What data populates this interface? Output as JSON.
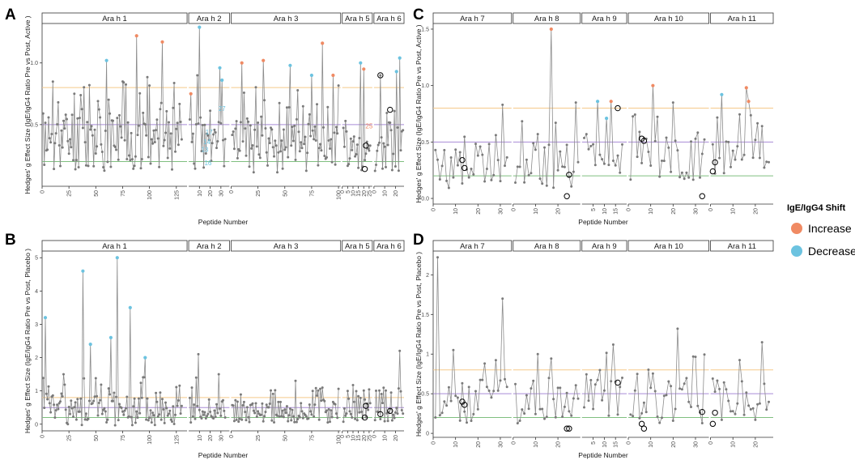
{
  "colors": {
    "increase": "#f08a63",
    "decrease": "#6cc3e0",
    "neutral": "#7a7a7a",
    "line": "#8c8c8c",
    "hl_orange": "#f5c98a",
    "hl_purple": "#a98bd6",
    "hl_green": "#7fbf7f"
  },
  "legend": {
    "title": "IgE/IgG4 Shift",
    "items": [
      {
        "label": "Increase",
        "color": "#f08a63"
      },
      {
        "label": "Decrease",
        "color": "#6cc3e0"
      }
    ]
  },
  "x_axis_title": "Peptide Number",
  "hlines": [
    {
      "y": 0.8,
      "color": "#f5c98a"
    },
    {
      "y": 0.5,
      "color": "#a98bd6"
    },
    {
      "y": 0.2,
      "color": "#7fbf7f"
    }
  ],
  "chart_data": [
    {
      "id": "A",
      "type": "line",
      "letter": "A",
      "ylabel": "Hedges' g Effect Size (IgE/IgG4 Ratio Pre vs Post,  Active )",
      "ylim": [
        0,
        1.32
      ],
      "yticks": [
        0.5,
        1.0
      ],
      "facets": [
        {
          "name": "Ara h 1",
          "xlim": [
            0,
            135
          ],
          "xticks": [
            0,
            25,
            50,
            75,
            100,
            125
          ],
          "n": 130,
          "seed": 11,
          "base": 0.38,
          "spread": 0.26,
          "spikes": [
            [
              60,
              1.02,
              "decrease"
            ],
            [
              88,
              1.22,
              "increase"
            ],
            [
              112,
              1.17,
              "increase"
            ],
            [
              30,
              0.75,
              "none"
            ],
            [
              44,
              0.82,
              "none"
            ],
            [
              75,
              0.85,
              "none"
            ]
          ]
        },
        {
          "name": "Ara h 2",
          "xlim": [
            0,
            38
          ],
          "xticks": [
            10,
            20,
            30
          ],
          "n": 34,
          "seed": 23,
          "base": 0.35,
          "spread": 0.22,
          "spikes": [
            [
              2,
              0.75,
              "increase"
            ],
            [
              8,
              0.9,
              "none"
            ],
            [
              10,
              1.29,
              "decrease"
            ],
            [
              29,
              0.96,
              "decrease"
            ],
            [
              31,
              0.86,
              "decrease"
            ]
          ],
          "annotations": [
            {
              "x": 15,
              "y": 0.3,
              "label": "13"
            },
            {
              "x": 17,
              "y": 0.36,
              "label": "14"
            },
            {
              "x": 19,
              "y": 0.44,
              "label": "17"
            },
            {
              "x": 18,
              "y": 0.19,
              "label": "16"
            },
            {
              "x": 31,
              "y": 0.63,
              "label": "27"
            }
          ]
        },
        {
          "name": "Ara h 3",
          "xlim": [
            0,
            102
          ],
          "xticks": [
            0,
            25,
            50,
            75,
            100
          ],
          "n": 100,
          "seed": 37,
          "base": 0.35,
          "spread": 0.24,
          "spikes": [
            [
              10,
              1.0,
              "increase"
            ],
            [
              30,
              1.02,
              "increase"
            ],
            [
              55,
              0.98,
              "decrease"
            ],
            [
              85,
              1.16,
              "increase"
            ],
            [
              95,
              0.9,
              "increase"
            ],
            [
              75,
              0.9,
              "decrease"
            ]
          ]
        },
        {
          "name": "Ara h 5",
          "xlim": [
            0,
            28
          ],
          "xticks": [
            0,
            5,
            10,
            15,
            20,
            25
          ],
          "n": 26,
          "seed": 41,
          "base": 0.3,
          "spread": 0.18,
          "spikes": [
            [
              17,
              1.0,
              "decrease"
            ],
            [
              20,
              0.95,
              "increase"
            ]
          ],
          "rings": [
            [
              22,
              0.33
            ],
            [
              21,
              0.14
            ]
          ],
          "annotations": [
            {
              "x": 25,
              "y": 0.49,
              "label": "25"
            }
          ]
        },
        {
          "name": "Ara h 6",
          "xlim": [
            0,
            28
          ],
          "xticks": [
            0,
            10,
            20
          ],
          "n": 27,
          "seed": 53,
          "base": 0.32,
          "spread": 0.2,
          "spikes": [
            [
              6,
              0.9,
              "none"
            ],
            [
              21,
              0.93,
              "decrease"
            ],
            [
              24,
              1.04,
              "decrease"
            ]
          ],
          "rings": [
            [
              6,
              0.9
            ],
            [
              15,
              0.62
            ]
          ]
        }
      ]
    },
    {
      "id": "B",
      "type": "line",
      "letter": "B",
      "ylabel": "Hedges' g Effect Size (IgE/IgG4 Ratio Pre vs Post,  Placebo )",
      "ylim": [
        -0.2,
        5.2
      ],
      "yticks": [
        0,
        1,
        2,
        3,
        4,
        5
      ],
      "facets": [
        {
          "name": "Ara h 1",
          "xlim": [
            0,
            135
          ],
          "xticks": [
            0,
            25,
            50,
            75,
            100,
            125
          ],
          "n": 130,
          "seed": 61,
          "base": 0.45,
          "spread": 0.5,
          "spikes": [
            [
              3,
              3.2,
              "decrease"
            ],
            [
              38,
              4.6,
              "decrease"
            ],
            [
              45,
              2.4,
              "decrease"
            ],
            [
              70,
              5.0,
              "decrease"
            ],
            [
              64,
              2.6,
              "decrease"
            ],
            [
              82,
              3.5,
              "decrease"
            ],
            [
              20,
              1.5,
              "none"
            ],
            [
              96,
              2.0,
              "decrease"
            ]
          ]
        },
        {
          "name": "Ara h 2",
          "xlim": [
            0,
            38
          ],
          "xticks": [
            10,
            20,
            30
          ],
          "n": 34,
          "seed": 71,
          "base": 0.4,
          "spread": 0.35,
          "spikes": [
            [
              9,
              2.1,
              "none"
            ],
            [
              7,
              1.4,
              "none"
            ],
            [
              28,
              1.5,
              "none"
            ]
          ]
        },
        {
          "name": "Ara h 3",
          "xlim": [
            0,
            102
          ],
          "xticks": [
            0,
            25,
            50,
            75,
            100
          ],
          "n": 100,
          "seed": 79,
          "base": 0.4,
          "spread": 0.35,
          "spikes": [
            [
              60,
              1.3,
              "none"
            ],
            [
              85,
              1.1,
              "none"
            ]
          ]
        },
        {
          "name": "Ara h 5",
          "xlim": [
            0,
            28
          ],
          "xticks": [
            0,
            5,
            10,
            15,
            20,
            25
          ],
          "n": 26,
          "seed": 83,
          "base": 0.4,
          "spread": 0.4,
          "spikes": [
            [
              5,
              1.0,
              "none"
            ]
          ],
          "rings": [
            [
              22,
              0.55
            ],
            [
              21,
              0.2
            ]
          ]
        },
        {
          "name": "Ara h 6",
          "xlim": [
            0,
            28
          ],
          "xticks": [
            0,
            10,
            20
          ],
          "n": 27,
          "seed": 89,
          "base": 0.4,
          "spread": 0.35,
          "spikes": [
            [
              24,
              2.2,
              "none"
            ]
          ],
          "rings": [
            [
              6,
              0.3
            ],
            [
              15,
              0.4
            ]
          ]
        }
      ]
    },
    {
      "id": "C",
      "type": "line",
      "letter": "C",
      "ylabel": "Hedges' g Effect Size (IgE/IgG4 Ratio Pre vs Post,  Active )",
      "ylim": [
        -0.05,
        1.55
      ],
      "yticks": [
        0.0,
        0.5,
        1.0,
        1.5
      ],
      "facets": [
        {
          "name": "Ara h 7",
          "xlim": [
            0,
            35
          ],
          "xticks": [
            0,
            10,
            20,
            30
          ],
          "n": 33,
          "seed": 97,
          "base": 0.3,
          "spread": 0.22,
          "spikes": [
            [
              31,
              0.83,
              "none"
            ]
          ],
          "rings": [
            [
              13,
              0.34
            ],
            [
              14,
              0.27
            ]
          ]
        },
        {
          "name": "Ara h 8",
          "xlim": [
            0,
            30
          ],
          "xticks": [
            0,
            10,
            20
          ],
          "n": 29,
          "seed": 101,
          "base": 0.3,
          "spread": 0.22,
          "spikes": [
            [
              17,
              1.5,
              "increase"
            ],
            [
              28,
              0.85,
              "none"
            ]
          ],
          "rings": [
            [
              24,
              0.02
            ],
            [
              25,
              0.21
            ]
          ]
        },
        {
          "name": "Ara h 9",
          "xlim": [
            0,
            20
          ],
          "xticks": [
            5,
            10,
            15
          ],
          "n": 18,
          "seed": 103,
          "base": 0.4,
          "spread": 0.22,
          "spikes": [
            [
              7,
              0.86,
              "decrease"
            ],
            [
              11,
              0.71,
              "decrease"
            ],
            [
              13,
              0.86,
              "increase"
            ]
          ],
          "rings": [
            [
              16,
              0.8
            ]
          ]
        },
        {
          "name": "Ara h 10",
          "xlim": [
            0,
            36
          ],
          "xticks": [
            0,
            10,
            20,
            30
          ],
          "n": 34,
          "seed": 107,
          "base": 0.32,
          "spread": 0.22,
          "spikes": [
            [
              11,
              1.0,
              "increase"
            ],
            [
              20,
              0.85,
              "none"
            ]
          ],
          "rings": [
            [
              6,
              0.53
            ],
            [
              7,
              0.51
            ],
            [
              33,
              0.02
            ]
          ]
        },
        {
          "name": "Ara h 11",
          "xlim": [
            0,
            28
          ],
          "xticks": [
            0,
            10,
            20
          ],
          "n": 26,
          "seed": 109,
          "base": 0.35,
          "spread": 0.2,
          "spikes": [
            [
              5,
              0.92,
              "decrease"
            ],
            [
              16,
              0.98,
              "increase"
            ],
            [
              17,
              0.86,
              "increase"
            ]
          ],
          "rings": [
            [
              2,
              0.32
            ],
            [
              1,
              0.24
            ]
          ]
        }
      ]
    },
    {
      "id": "D",
      "type": "line",
      "letter": "D",
      "ylabel": "Hedges' g Effect Size (IgE/IgG4 Ratio Pre vs Post,  Placebo )",
      "ylim": [
        -0.05,
        2.3
      ],
      "yticks": [
        0.0,
        0.5,
        1.0,
        1.5,
        2.0
      ],
      "facets": [
        {
          "name": "Ara h 7",
          "xlim": [
            0,
            35
          ],
          "xticks": [
            0,
            10,
            20,
            30
          ],
          "n": 33,
          "seed": 113,
          "base": 0.4,
          "spread": 0.3,
          "spikes": [
            [
              2,
              2.22,
              "none"
            ],
            [
              31,
              1.7,
              "none"
            ],
            [
              9,
              1.05,
              "none"
            ]
          ],
          "rings": [
            [
              13,
              0.4
            ],
            [
              14,
              0.36
            ]
          ]
        },
        {
          "name": "Ara h 8",
          "xlim": [
            0,
            30
          ],
          "xticks": [
            0,
            10,
            20
          ],
          "n": 29,
          "seed": 127,
          "base": 0.4,
          "spread": 0.3,
          "spikes": [
            [
              11,
              1.0,
              "none"
            ]
          ],
          "rings": [
            [
              24,
              0.06
            ],
            [
              25,
              0.06
            ]
          ]
        },
        {
          "name": "Ara h 9",
          "xlim": [
            0,
            20
          ],
          "xticks": [
            5,
            10,
            15
          ],
          "n": 18,
          "seed": 131,
          "base": 0.5,
          "spread": 0.3,
          "spikes": [
            [
              14,
              1.12,
              "none"
            ]
          ],
          "rings": [
            [
              16,
              0.64
            ]
          ]
        },
        {
          "name": "Ara h 10",
          "xlim": [
            0,
            36
          ],
          "xticks": [
            0,
            10,
            20,
            30
          ],
          "n": 34,
          "seed": 137,
          "base": 0.4,
          "spread": 0.3,
          "spikes": [
            [
              22,
              1.32,
              "none"
            ]
          ],
          "rings": [
            [
              6,
              0.12
            ],
            [
              7,
              0.06
            ],
            [
              33,
              0.27
            ]
          ]
        },
        {
          "name": "Ara h 11",
          "xlim": [
            0,
            28
          ],
          "xticks": [
            0,
            10,
            20
          ],
          "n": 26,
          "seed": 139,
          "base": 0.45,
          "spread": 0.3,
          "spikes": [
            [
              23,
              1.15,
              "none"
            ]
          ],
          "rings": [
            [
              2,
              0.26
            ],
            [
              1,
              0.12
            ]
          ]
        }
      ]
    }
  ]
}
